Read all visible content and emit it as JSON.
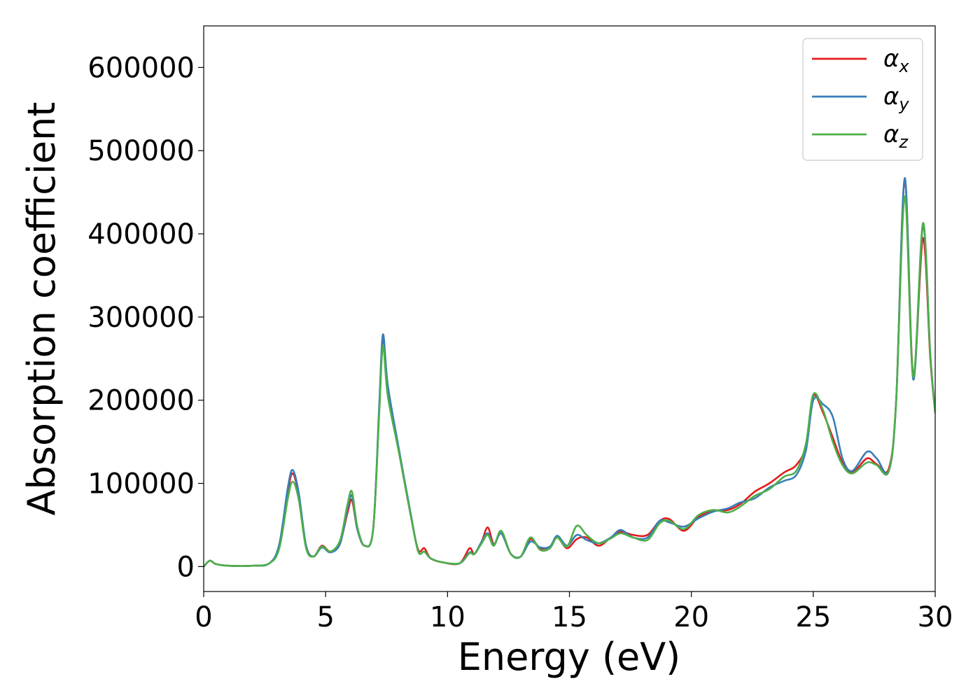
{
  "chart_data": {
    "type": "line",
    "title": "",
    "xlabel": "Energy (eV)",
    "ylabel": "Absorption coefficient",
    "xlim": [
      0,
      30
    ],
    "ylim": [
      -30000,
      650000
    ],
    "xticks": [
      0,
      5,
      10,
      15,
      20,
      25,
      30
    ],
    "xtick_labels": [
      "0",
      "5",
      "10",
      "15",
      "20",
      "25",
      "30"
    ],
    "yticks": [
      0,
      100000,
      200000,
      300000,
      400000,
      500000,
      600000
    ],
    "ytick_labels": [
      "0",
      "100000",
      "200000",
      "300000",
      "400000",
      "500000",
      "600000"
    ],
    "grid": false,
    "legend_position": "top-right",
    "series": [
      {
        "name": "αx",
        "name_base": "α",
        "name_sub": "x",
        "color": "#e41a1c",
        "points": [
          [
            0,
            0
          ],
          [
            0.25,
            7000
          ],
          [
            0.5,
            3000
          ],
          [
            1.0,
            1000
          ],
          [
            2.0,
            1000
          ],
          [
            2.7,
            4000
          ],
          [
            3.1,
            25000
          ],
          [
            3.45,
            90000
          ],
          [
            3.65,
            112000
          ],
          [
            3.9,
            85000
          ],
          [
            4.2,
            25000
          ],
          [
            4.5,
            12000
          ],
          [
            4.85,
            25000
          ],
          [
            5.2,
            18000
          ],
          [
            5.6,
            30000
          ],
          [
            5.9,
            65000
          ],
          [
            6.08,
            80000
          ],
          [
            6.3,
            45000
          ],
          [
            6.6,
            25000
          ],
          [
            6.95,
            45000
          ],
          [
            7.2,
            190000
          ],
          [
            7.35,
            275000
          ],
          [
            7.55,
            215000
          ],
          [
            8.0,
            140000
          ],
          [
            8.5,
            60000
          ],
          [
            8.8,
            20000
          ],
          [
            9.05,
            22000
          ],
          [
            9.3,
            10000
          ],
          [
            9.8,
            5000
          ],
          [
            10.5,
            4000
          ],
          [
            10.9,
            22000
          ],
          [
            11.1,
            15000
          ],
          [
            11.4,
            30000
          ],
          [
            11.65,
            47000
          ],
          [
            11.9,
            27000
          ],
          [
            12.2,
            40000
          ],
          [
            12.6,
            15000
          ],
          [
            13.0,
            12000
          ],
          [
            13.4,
            33000
          ],
          [
            13.8,
            22000
          ],
          [
            14.2,
            24000
          ],
          [
            14.5,
            35000
          ],
          [
            14.9,
            22000
          ],
          [
            15.3,
            33000
          ],
          [
            15.7,
            35000
          ],
          [
            16.2,
            25000
          ],
          [
            16.7,
            35000
          ],
          [
            17.1,
            42000
          ],
          [
            17.6,
            38000
          ],
          [
            18.2,
            38000
          ],
          [
            18.7,
            55000
          ],
          [
            19.1,
            57000
          ],
          [
            19.7,
            43000
          ],
          [
            20.3,
            60000
          ],
          [
            20.9,
            67000
          ],
          [
            21.5,
            68000
          ],
          [
            22.0,
            75000
          ],
          [
            22.6,
            90000
          ],
          [
            23.2,
            100000
          ],
          [
            23.8,
            113000
          ],
          [
            24.3,
            122000
          ],
          [
            24.7,
            145000
          ],
          [
            25.0,
            205000
          ],
          [
            25.4,
            185000
          ],
          [
            25.8,
            155000
          ],
          [
            26.2,
            125000
          ],
          [
            26.6,
            113000
          ],
          [
            27.2,
            130000
          ],
          [
            27.6,
            123000
          ],
          [
            28.1,
            118000
          ],
          [
            28.4,
            200000
          ],
          [
            28.75,
            465000
          ],
          [
            29.1,
            230000
          ],
          [
            29.5,
            395000
          ],
          [
            29.8,
            250000
          ],
          [
            30.0,
            185000
          ]
        ]
      },
      {
        "name": "αy",
        "name_base": "α",
        "name_sub": "y",
        "color": "#377eb8",
        "points": [
          [
            0,
            0
          ],
          [
            0.25,
            7000
          ],
          [
            0.5,
            3000
          ],
          [
            1.0,
            1000
          ],
          [
            2.0,
            1000
          ],
          [
            2.7,
            4000
          ],
          [
            3.1,
            27000
          ],
          [
            3.45,
            95000
          ],
          [
            3.65,
            116000
          ],
          [
            3.9,
            88000
          ],
          [
            4.2,
            25000
          ],
          [
            4.5,
            12000
          ],
          [
            4.85,
            23000
          ],
          [
            5.2,
            17000
          ],
          [
            5.6,
            28000
          ],
          [
            5.9,
            70000
          ],
          [
            6.08,
            85000
          ],
          [
            6.3,
            45000
          ],
          [
            6.6,
            25000
          ],
          [
            6.95,
            45000
          ],
          [
            7.2,
            195000
          ],
          [
            7.35,
            279000
          ],
          [
            7.55,
            218000
          ],
          [
            8.0,
            142000
          ],
          [
            8.5,
            62000
          ],
          [
            8.8,
            18000
          ],
          [
            9.05,
            18000
          ],
          [
            9.3,
            10000
          ],
          [
            9.8,
            5000
          ],
          [
            10.5,
            4000
          ],
          [
            10.9,
            17000
          ],
          [
            11.1,
            15000
          ],
          [
            11.4,
            30000
          ],
          [
            11.65,
            40000
          ],
          [
            11.9,
            26000
          ],
          [
            12.2,
            40000
          ],
          [
            12.6,
            15000
          ],
          [
            13.0,
            12000
          ],
          [
            13.4,
            30000
          ],
          [
            13.8,
            23000
          ],
          [
            14.2,
            24000
          ],
          [
            14.5,
            37000
          ],
          [
            14.9,
            25000
          ],
          [
            15.3,
            38000
          ],
          [
            15.7,
            32000
          ],
          [
            16.2,
            28000
          ],
          [
            16.7,
            35000
          ],
          [
            17.1,
            44000
          ],
          [
            17.6,
            35000
          ],
          [
            18.2,
            35000
          ],
          [
            18.7,
            55000
          ],
          [
            19.1,
            53000
          ],
          [
            19.7,
            48000
          ],
          [
            20.3,
            58000
          ],
          [
            20.9,
            66000
          ],
          [
            21.5,
            70000
          ],
          [
            22.0,
            77000
          ],
          [
            22.6,
            82000
          ],
          [
            23.2,
            95000
          ],
          [
            23.8,
            103000
          ],
          [
            24.3,
            110000
          ],
          [
            24.7,
            140000
          ],
          [
            25.0,
            200000
          ],
          [
            25.4,
            195000
          ],
          [
            25.8,
            180000
          ],
          [
            26.2,
            130000
          ],
          [
            26.6,
            115000
          ],
          [
            27.2,
            138000
          ],
          [
            27.6,
            130000
          ],
          [
            28.1,
            115000
          ],
          [
            28.4,
            200000
          ],
          [
            28.75,
            467000
          ],
          [
            29.1,
            225000
          ],
          [
            29.5,
            410000
          ],
          [
            29.8,
            255000
          ],
          [
            30.0,
            185000
          ]
        ]
      },
      {
        "name": "αz",
        "name_base": "α",
        "name_sub": "z",
        "color": "#4daf4a",
        "points": [
          [
            0,
            0
          ],
          [
            0.25,
            7000
          ],
          [
            0.5,
            3000
          ],
          [
            1.0,
            1000
          ],
          [
            2.0,
            1000
          ],
          [
            2.7,
            4000
          ],
          [
            3.1,
            22000
          ],
          [
            3.45,
            82000
          ],
          [
            3.65,
            102000
          ],
          [
            3.9,
            80000
          ],
          [
            4.2,
            22000
          ],
          [
            4.5,
            12000
          ],
          [
            4.85,
            24000
          ],
          [
            5.2,
            18000
          ],
          [
            5.6,
            32000
          ],
          [
            5.9,
            75000
          ],
          [
            6.08,
            90000
          ],
          [
            6.3,
            48000
          ],
          [
            6.6,
            25000
          ],
          [
            6.95,
            45000
          ],
          [
            7.2,
            185000
          ],
          [
            7.35,
            265000
          ],
          [
            7.55,
            205000
          ],
          [
            8.0,
            138000
          ],
          [
            8.5,
            60000
          ],
          [
            8.8,
            18000
          ],
          [
            9.05,
            18000
          ],
          [
            9.3,
            10000
          ],
          [
            9.8,
            5000
          ],
          [
            10.5,
            4000
          ],
          [
            10.9,
            16000
          ],
          [
            11.1,
            15000
          ],
          [
            11.4,
            28000
          ],
          [
            11.65,
            38000
          ],
          [
            11.9,
            25000
          ],
          [
            12.2,
            43000
          ],
          [
            12.6,
            15000
          ],
          [
            13.0,
            12000
          ],
          [
            13.4,
            35000
          ],
          [
            13.8,
            20000
          ],
          [
            14.2,
            22000
          ],
          [
            14.5,
            35000
          ],
          [
            14.9,
            24000
          ],
          [
            15.3,
            49000
          ],
          [
            15.7,
            38000
          ],
          [
            16.2,
            28000
          ],
          [
            16.7,
            34000
          ],
          [
            17.1,
            40000
          ],
          [
            17.6,
            35000
          ],
          [
            18.2,
            32000
          ],
          [
            18.7,
            52000
          ],
          [
            19.1,
            55000
          ],
          [
            19.7,
            45000
          ],
          [
            20.3,
            62000
          ],
          [
            20.9,
            68000
          ],
          [
            21.5,
            65000
          ],
          [
            22.0,
            72000
          ],
          [
            22.6,
            85000
          ],
          [
            23.2,
            93000
          ],
          [
            23.8,
            108000
          ],
          [
            24.3,
            115000
          ],
          [
            24.7,
            148000
          ],
          [
            25.0,
            207000
          ],
          [
            25.4,
            188000
          ],
          [
            25.8,
            150000
          ],
          [
            26.2,
            122000
          ],
          [
            26.6,
            112000
          ],
          [
            27.2,
            125000
          ],
          [
            27.6,
            122000
          ],
          [
            28.1,
            115000
          ],
          [
            28.4,
            200000
          ],
          [
            28.75,
            445000
          ],
          [
            29.1,
            228000
          ],
          [
            29.5,
            413000
          ],
          [
            29.8,
            255000
          ],
          [
            30.0,
            185000
          ]
        ]
      }
    ]
  }
}
